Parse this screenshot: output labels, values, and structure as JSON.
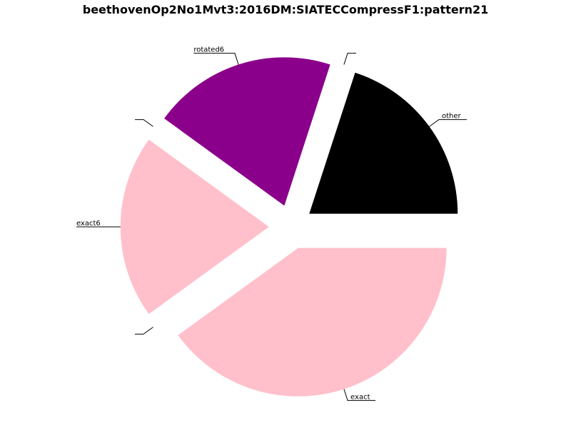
{
  "chart_data": {
    "type": "pie",
    "title": "beethovenOp2No1Mvt3:2016DM:SIATECCompressF1:pattern21",
    "start_angle_deg": 0,
    "direction": "counterclockwise",
    "exploded": true,
    "slices": [
      {
        "label": "other",
        "value": 20,
        "color": "#000000"
      },
      {
        "label": "",
        "value": 0,
        "color": "#ffffff"
      },
      {
        "label": "rotated6",
        "value": 20,
        "color": "#8b008b"
      },
      {
        "label": "",
        "value": 0,
        "color": "#ffffff"
      },
      {
        "label": "exact6",
        "value": 20,
        "color": "#ffc0cb"
      },
      {
        "label": "",
        "value": 0,
        "color": "#ffffff"
      },
      {
        "label": "exact",
        "value": 40,
        "color": "#ffc0cb"
      }
    ]
  }
}
